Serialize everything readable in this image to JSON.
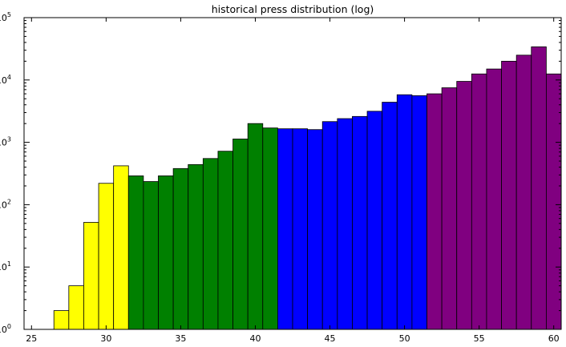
{
  "chart_data": {
    "type": "bar",
    "title": "historical press distribution (log)",
    "xlabel": "",
    "ylabel": "",
    "y_scale": "log",
    "xlim": [
      24.5,
      60.5
    ],
    "ylim": [
      1,
      100000
    ],
    "grid": false,
    "x_ticks": [
      "25",
      "30",
      "35",
      "40",
      "45",
      "50",
      "55",
      "60"
    ],
    "y_ticks": [
      {
        "base": "10",
        "exp": "0"
      },
      {
        "base": "10",
        "exp": "1"
      },
      {
        "base": "10",
        "exp": "2"
      },
      {
        "base": "10",
        "exp": "3"
      },
      {
        "base": "10",
        "exp": "4"
      },
      {
        "base": "10",
        "exp": "5"
      }
    ],
    "bar_width": 1,
    "series": [
      {
        "color": "#ffff00",
        "x": [
          27,
          28,
          29,
          30,
          31
        ],
        "values": [
          2,
          5,
          52,
          220,
          420
        ]
      },
      {
        "color": "#008000",
        "x": [
          32,
          33,
          34,
          35,
          36,
          37,
          38,
          39,
          40,
          41
        ],
        "values": [
          290,
          235,
          290,
          380,
          440,
          550,
          720,
          1130,
          2000,
          1700
        ]
      },
      {
        "color": "#0000ff",
        "x": [
          42,
          43,
          44,
          45,
          46,
          47,
          48,
          49,
          50,
          51
        ],
        "values": [
          1650,
          1650,
          1600,
          2150,
          2400,
          2600,
          3150,
          4400,
          5800,
          5600
        ]
      },
      {
        "color": "#800080",
        "x": [
          52,
          53,
          54,
          55,
          56,
          57,
          58,
          59,
          60
        ],
        "values": [
          6000,
          7500,
          9500,
          12500,
          15000,
          20000,
          25000,
          34000,
          12500
        ]
      }
    ]
  }
}
